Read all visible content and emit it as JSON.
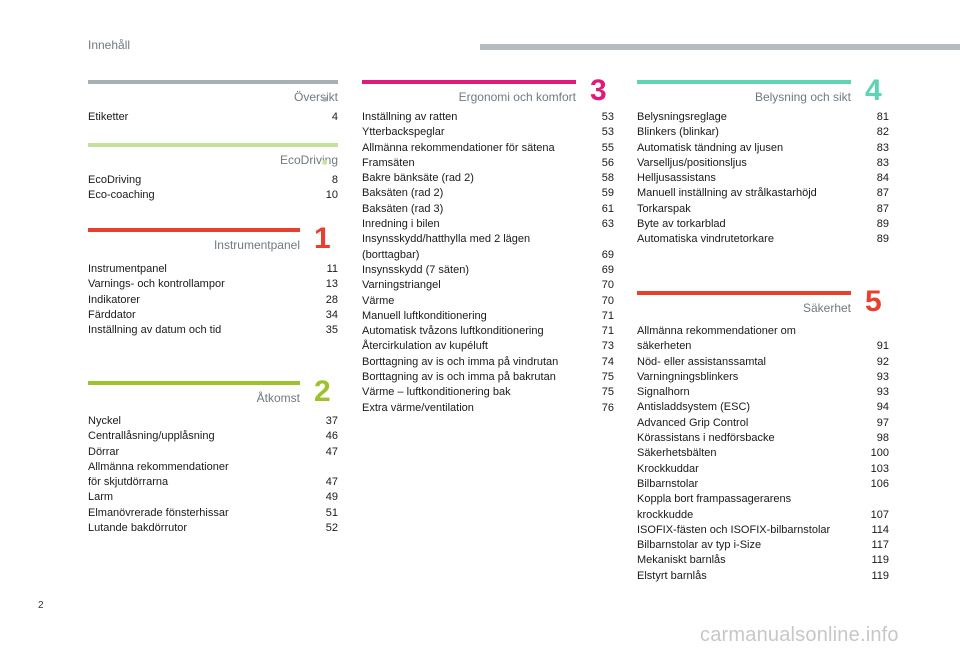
{
  "header": {
    "title": "Innehåll"
  },
  "page_number": "2",
  "watermark": "carmanualsonline.info",
  "colors": {
    "grey": "#a7b0b3",
    "light_green": "#c6e199",
    "red": "#e8402f",
    "green": "#9dc22b",
    "pink": "#e01a7a",
    "mint": "#5ed4b4"
  },
  "sections": {
    "oversikt": {
      "title": "Översikt",
      "number": "",
      "dot": "■",
      "entries": [
        {
          "title": "Etiketter",
          "page": "4"
        }
      ]
    },
    "ecodriving": {
      "title": "EcoDriving",
      "number": "",
      "dot": "■",
      "entries": [
        {
          "title": "EcoDriving",
          "page": "8"
        },
        {
          "title": "Eco-coaching",
          "page": "10"
        }
      ]
    },
    "instrumentpanel": {
      "title": "Instrumentpanel",
      "number": "1",
      "entries": [
        {
          "title": "Instrumentpanel",
          "page": "11"
        },
        {
          "title": "Varnings- och kontrollampor",
          "page": "13"
        },
        {
          "title": "Indikatorer",
          "page": "28"
        },
        {
          "title": "Färddator",
          "page": "34"
        },
        {
          "title": "Inställning av datum och tid",
          "page": "35"
        }
      ]
    },
    "atkomst": {
      "title": "Åtkomst",
      "number": "2",
      "entries": [
        {
          "title": "Nyckel",
          "page": "37"
        },
        {
          "title": "Centrallåsning/upplåsning",
          "page": "46"
        },
        {
          "title": "Dörrar",
          "page": "47"
        },
        {
          "title": "Allmänna rekommendationer\nför skjutdörrarna",
          "page": "47"
        },
        {
          "title": "Larm",
          "page": "49"
        },
        {
          "title": "Elmanövrerade fönsterhissar",
          "page": "51"
        },
        {
          "title": "Lutande bakdörrutor",
          "page": "52"
        }
      ]
    },
    "ergonomi": {
      "title": "Ergonomi och komfort",
      "number": "3",
      "entries": [
        {
          "title": "Inställning av ratten",
          "page": "53"
        },
        {
          "title": "Ytterbackspeglar",
          "page": "53"
        },
        {
          "title": "Allmänna rekommendationer för sätena",
          "page": "55"
        },
        {
          "title": "Framsäten",
          "page": "56"
        },
        {
          "title": "Bakre bänksäte (rad 2)",
          "page": "58"
        },
        {
          "title": "Baksäten (rad 2)",
          "page": "59"
        },
        {
          "title": "Baksäten (rad 3)",
          "page": "61"
        },
        {
          "title": "Inredning i bilen",
          "page": "63"
        },
        {
          "title": "Insynsskydd/hatthylla med 2 lägen\n   (borttagbar)",
          "page": "69"
        },
        {
          "title": "Insynsskydd (7 säten)",
          "page": "69"
        },
        {
          "title": "Varningstriangel",
          "page": "70"
        },
        {
          "title": "Värme",
          "page": "70"
        },
        {
          "title": "Manuell luftkonditionering",
          "page": "71"
        },
        {
          "title": "Automatisk tvåzons luftkonditionering",
          "page": "71"
        },
        {
          "title": "Återcirkulation av kupéluft",
          "page": "73"
        },
        {
          "title": "Borttagning av is och imma på vindrutan",
          "page": "74"
        },
        {
          "title": "Borttagning av is och imma på bakrutan",
          "page": "75"
        },
        {
          "title": "Värme – luftkonditionering bak",
          "page": "75"
        },
        {
          "title": "Extra värme/ventilation",
          "page": "76"
        }
      ]
    },
    "belysning": {
      "title": "Belysning och sikt",
      "number": "4",
      "entries": [
        {
          "title": "Belysningsreglage",
          "page": "81"
        },
        {
          "title": "Blinkers (blinkar)",
          "page": "82"
        },
        {
          "title": "Automatisk tändning av ljusen",
          "page": "83"
        },
        {
          "title": "Varselljus/positionsljus",
          "page": "83"
        },
        {
          "title": "Helljusassistans",
          "page": "84"
        },
        {
          "title": "Manuell inställning av strålkastarhöjd",
          "page": "87"
        },
        {
          "title": "Torkarspak",
          "page": "87"
        },
        {
          "title": "Byte av torkarblad",
          "page": "89"
        },
        {
          "title": "Automatiska vindrutetorkare",
          "page": "89"
        }
      ]
    },
    "sakerhet": {
      "title": "Säkerhet",
      "number": "5",
      "entries": [
        {
          "title": "Allmänna rekommendationer om\nsäkerheten",
          "page": "91"
        },
        {
          "title": "Nöd- eller assistanssamtal",
          "page": "92"
        },
        {
          "title": "Varningningsblinkers",
          "page": "93"
        },
        {
          "title": "Signalhorn",
          "page": "93"
        },
        {
          "title": "Antisladdsystem (ESC)",
          "page": "94"
        },
        {
          "title": "Advanced Grip Control",
          "page": "97"
        },
        {
          "title": "Körassistans i nedförsbacke",
          "page": "98"
        },
        {
          "title": "Säkerhetsbälten",
          "page": "100"
        },
        {
          "title": "Krockkuddar",
          "page": "103"
        },
        {
          "title": "Bilbarnstolar",
          "page": "106"
        },
        {
          "title": "Koppla bort frampassagerarens\nkrockkudde",
          "page": "107"
        },
        {
          "title": "ISOFIX-fästen och ISOFIX-bilbarnstolar",
          "page": "114"
        },
        {
          "title": "Bilbarnstolar av typ i-Size",
          "page": "117"
        },
        {
          "title": "Mekaniskt barnlås",
          "page": "119"
        },
        {
          "title": "Elstyrt barnlås",
          "page": "119"
        }
      ]
    }
  }
}
